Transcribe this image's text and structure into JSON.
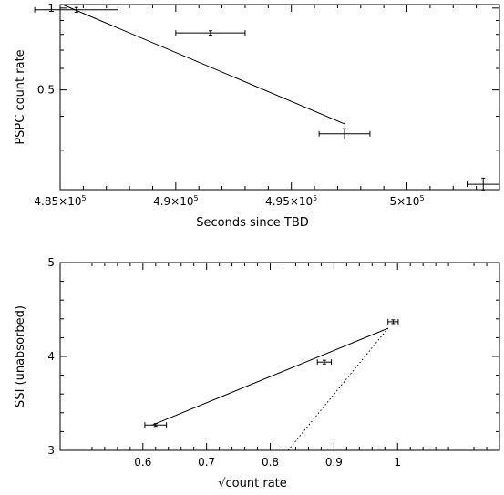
{
  "chart_data": [
    {
      "type": "scatter",
      "xlabel": "Seconds since TBD",
      "ylabel": "PSPC count rate",
      "xlim": [
        485000,
        504000
      ],
      "ylim": [
        0.215,
        1.03
      ],
      "ylog": true,
      "xticks": [
        {
          "value": 485000,
          "mantissa": "4.85×10",
          "exp": "5"
        },
        {
          "value": 490000,
          "mantissa": "4.9×10",
          "exp": "5"
        },
        {
          "value": 495000,
          "mantissa": "4.95×10",
          "exp": "5"
        },
        {
          "value": 500000,
          "mantissa": "5×10",
          "exp": "5"
        }
      ],
      "yticks": [
        {
          "value": 1,
          "label": "1"
        },
        {
          "value": 0.5,
          "label": "0.5"
        }
      ],
      "points": [
        {
          "x": 485700,
          "xerr": 1800,
          "y": 0.985,
          "yerr": 0.02
        },
        {
          "x": 491500,
          "xerr": 1500,
          "y": 0.81,
          "yerr": 0.015
        },
        {
          "x": 497300,
          "xerr": 1100,
          "y": 0.345,
          "yerr": 0.015
        },
        {
          "x": 503300,
          "xerr": 700,
          "y": 0.225,
          "yerr": 0.012
        }
      ],
      "fit_line": {
        "x": [
          485100,
          497300
        ],
        "y": [
          1.03,
          0.375
        ]
      }
    },
    {
      "type": "scatter",
      "xlabel": "√count rate",
      "ylabel": "SSI (unabsorbed)",
      "xlim": [
        0.47,
        1.16
      ],
      "ylim": [
        3,
        5
      ],
      "xticks": [
        {
          "value": 0.6,
          "label": "0.6"
        },
        {
          "value": 0.7,
          "label": "0.7"
        },
        {
          "value": 0.8,
          "label": "0.8"
        },
        {
          "value": 0.9,
          "label": "0.9"
        },
        {
          "value": 1,
          "label": "1"
        }
      ],
      "yticks": [
        {
          "value": 3,
          "label": "3"
        },
        {
          "value": 4,
          "label": "4"
        },
        {
          "value": 5,
          "label": "5"
        }
      ],
      "points": [
        {
          "x": 0.62,
          "xerr": 0.017,
          "y": 3.27,
          "yerr": 0.015
        },
        {
          "x": 0.885,
          "xerr": 0.011,
          "y": 3.94,
          "yerr": 0.02
        },
        {
          "x": 0.993,
          "xerr": 0.008,
          "y": 4.37,
          "yerr": 0.02
        }
      ],
      "fit_line": {
        "x": [
          0.615,
          0.985
        ],
        "y": [
          3.27,
          4.3
        ]
      },
      "dotted_line": {
        "x": [
          0.828,
          0.985
        ],
        "y": [
          3,
          4.3
        ]
      }
    }
  ]
}
